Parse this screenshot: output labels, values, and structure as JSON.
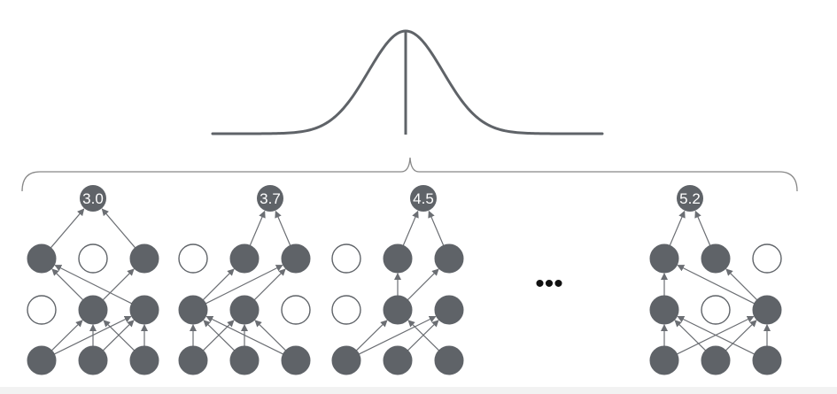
{
  "colors": {
    "node_fill": "#5f6368",
    "stroke": "#5f6368",
    "edge": "#6b6e73",
    "empty_node_fill": "#ffffff",
    "background": "#ffffff"
  },
  "distribution": {
    "shape": "bell-curve",
    "center_line": true
  },
  "ellipsis": "•••",
  "networks": [
    {
      "output": "3.0",
      "active": [
        [
          true,
          false,
          true
        ],
        [
          false,
          true,
          true
        ],
        [
          true,
          true,
          true
        ]
      ],
      "output_inputs": [
        0,
        2
      ],
      "hidden2_inputs": [
        [
          1,
          2
        ],
        [],
        [
          1
        ]
      ],
      "hidden1_inputs": [
        [],
        [
          0,
          1,
          2
        ],
        [
          0,
          1,
          2
        ]
      ]
    },
    {
      "output": "3.7",
      "active": [
        [
          false,
          true,
          true
        ],
        [
          true,
          true,
          false
        ],
        [
          true,
          true,
          true
        ]
      ],
      "output_inputs": [
        1,
        2
      ],
      "hidden2_inputs": [
        [],
        [
          0
        ],
        [
          0,
          1
        ]
      ],
      "hidden1_inputs": [
        [
          0,
          1,
          2
        ],
        [
          0,
          1,
          2
        ],
        []
      ]
    },
    {
      "output": "4.5",
      "active": [
        [
          false,
          true,
          true
        ],
        [
          false,
          true,
          true
        ],
        [
          true,
          true,
          true
        ]
      ],
      "output_inputs": [
        1,
        2
      ],
      "hidden2_inputs": [
        [],
        [
          1
        ],
        [
          1
        ]
      ],
      "hidden1_inputs": [
        [],
        [
          0,
          2
        ],
        [
          0,
          1
        ]
      ]
    },
    {
      "output": "5.2",
      "active": [
        [
          true,
          true,
          false
        ],
        [
          true,
          false,
          true
        ],
        [
          true,
          true,
          true
        ]
      ],
      "output_inputs": [
        0,
        1
      ],
      "hidden2_inputs": [
        [
          0,
          2
        ],
        [
          2
        ],
        []
      ],
      "hidden1_inputs": [
        [
          0,
          1,
          2
        ],
        [],
        [
          0,
          1,
          2
        ]
      ]
    }
  ]
}
